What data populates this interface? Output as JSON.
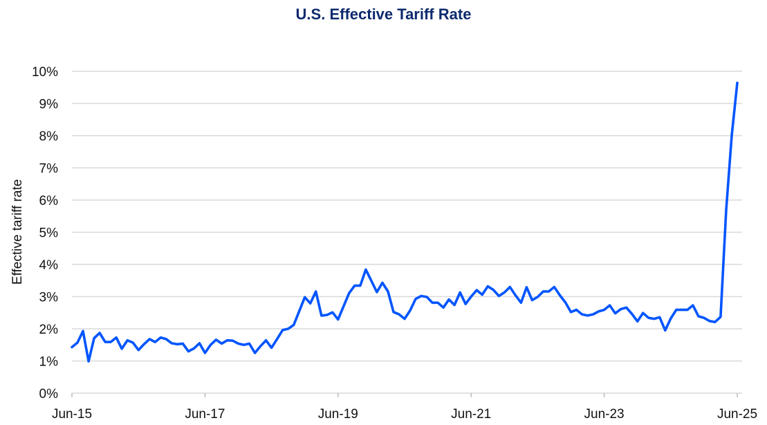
{
  "chart_data": {
    "type": "line",
    "title": "U.S. Effective Tariff Rate",
    "xlabel": "",
    "ylabel": "Effective tariff rate",
    "ylim": [
      0,
      10
    ],
    "y_ticks": [
      "0%",
      "1%",
      "2%",
      "3%",
      "4%",
      "5%",
      "6%",
      "7%",
      "8%",
      "9%",
      "10%"
    ],
    "x_ticks": [
      {
        "date": "2015-06",
        "label": "Jun-15"
      },
      {
        "date": "2017-06",
        "label": "Jun-17"
      },
      {
        "date": "2019-06",
        "label": "Jun-19"
      },
      {
        "date": "2021-06",
        "label": "Jun-21"
      },
      {
        "date": "2023-06",
        "label": "Jun-23"
      },
      {
        "date": "2025-06",
        "label": "Jun-25"
      }
    ],
    "grid": "horizontal",
    "line_color": "#0055ff",
    "x": [
      "2015-06",
      "2015-07",
      "2015-08",
      "2015-09",
      "2015-10",
      "2015-11",
      "2015-12",
      "2016-01",
      "2016-02",
      "2016-03",
      "2016-04",
      "2016-05",
      "2016-06",
      "2016-07",
      "2016-08",
      "2016-09",
      "2016-10",
      "2016-11",
      "2016-12",
      "2017-01",
      "2017-02",
      "2017-03",
      "2017-04",
      "2017-05",
      "2017-06",
      "2017-07",
      "2017-08",
      "2017-09",
      "2017-10",
      "2017-11",
      "2017-12",
      "2018-01",
      "2018-02",
      "2018-03",
      "2018-04",
      "2018-05",
      "2018-06",
      "2018-07",
      "2018-08",
      "2018-09",
      "2018-10",
      "2018-11",
      "2018-12",
      "2019-01",
      "2019-02",
      "2019-03",
      "2019-04",
      "2019-05",
      "2019-06",
      "2019-07",
      "2019-08",
      "2019-09",
      "2019-10",
      "2019-11",
      "2019-12",
      "2020-01",
      "2020-02",
      "2020-03",
      "2020-04",
      "2020-05",
      "2020-06",
      "2020-07",
      "2020-08",
      "2020-09",
      "2020-10",
      "2020-11",
      "2020-12",
      "2021-01",
      "2021-02",
      "2021-03",
      "2021-04",
      "2021-05",
      "2021-06",
      "2021-07",
      "2021-08",
      "2021-09",
      "2021-10",
      "2021-11",
      "2021-12",
      "2022-01",
      "2022-02",
      "2022-03",
      "2022-04",
      "2022-05",
      "2022-06",
      "2022-07",
      "2022-08",
      "2022-09",
      "2022-10",
      "2022-11",
      "2022-12",
      "2023-01",
      "2023-02",
      "2023-03",
      "2023-04",
      "2023-05",
      "2023-06",
      "2023-07",
      "2023-08",
      "2023-09",
      "2023-10",
      "2023-11",
      "2023-12",
      "2024-01",
      "2024-02",
      "2024-03",
      "2024-04",
      "2024-05",
      "2024-06",
      "2024-07",
      "2024-08",
      "2024-09",
      "2024-10",
      "2024-11",
      "2024-12",
      "2025-01",
      "2025-02",
      "2025-03",
      "2025-04",
      "2025-05",
      "2025-06"
    ],
    "values": [
      1.43,
      1.57,
      1.93,
      0.99,
      1.71,
      1.87,
      1.59,
      1.59,
      1.73,
      1.38,
      1.64,
      1.57,
      1.34,
      1.52,
      1.68,
      1.59,
      1.73,
      1.68,
      1.55,
      1.52,
      1.54,
      1.3,
      1.39,
      1.55,
      1.25,
      1.5,
      1.66,
      1.54,
      1.64,
      1.63,
      1.54,
      1.5,
      1.54,
      1.25,
      1.46,
      1.64,
      1.41,
      1.68,
      1.96,
      2.0,
      2.12,
      2.55,
      2.98,
      2.79,
      3.16,
      2.41,
      2.43,
      2.51,
      2.29,
      2.7,
      3.11,
      3.34,
      3.34,
      3.84,
      3.49,
      3.14,
      3.43,
      3.16,
      2.52,
      2.45,
      2.31,
      2.57,
      2.93,
      3.02,
      2.99,
      2.81,
      2.81,
      2.66,
      2.91,
      2.74,
      3.13,
      2.77,
      3.0,
      3.2,
      3.06,
      3.32,
      3.21,
      3.02,
      3.13,
      3.3,
      3.04,
      2.81,
      3.29,
      2.89,
      2.99,
      3.16,
      3.16,
      3.3,
      3.04,
      2.82,
      2.52,
      2.59,
      2.45,
      2.41,
      2.45,
      2.54,
      2.59,
      2.73,
      2.48,
      2.61,
      2.66,
      2.46,
      2.23,
      2.49,
      2.34,
      2.31,
      2.36,
      1.95,
      2.32,
      2.59,
      2.59,
      2.59,
      2.73,
      2.39,
      2.34,
      2.24,
      2.21,
      2.37,
      5.7,
      8.0,
      9.64
    ]
  }
}
